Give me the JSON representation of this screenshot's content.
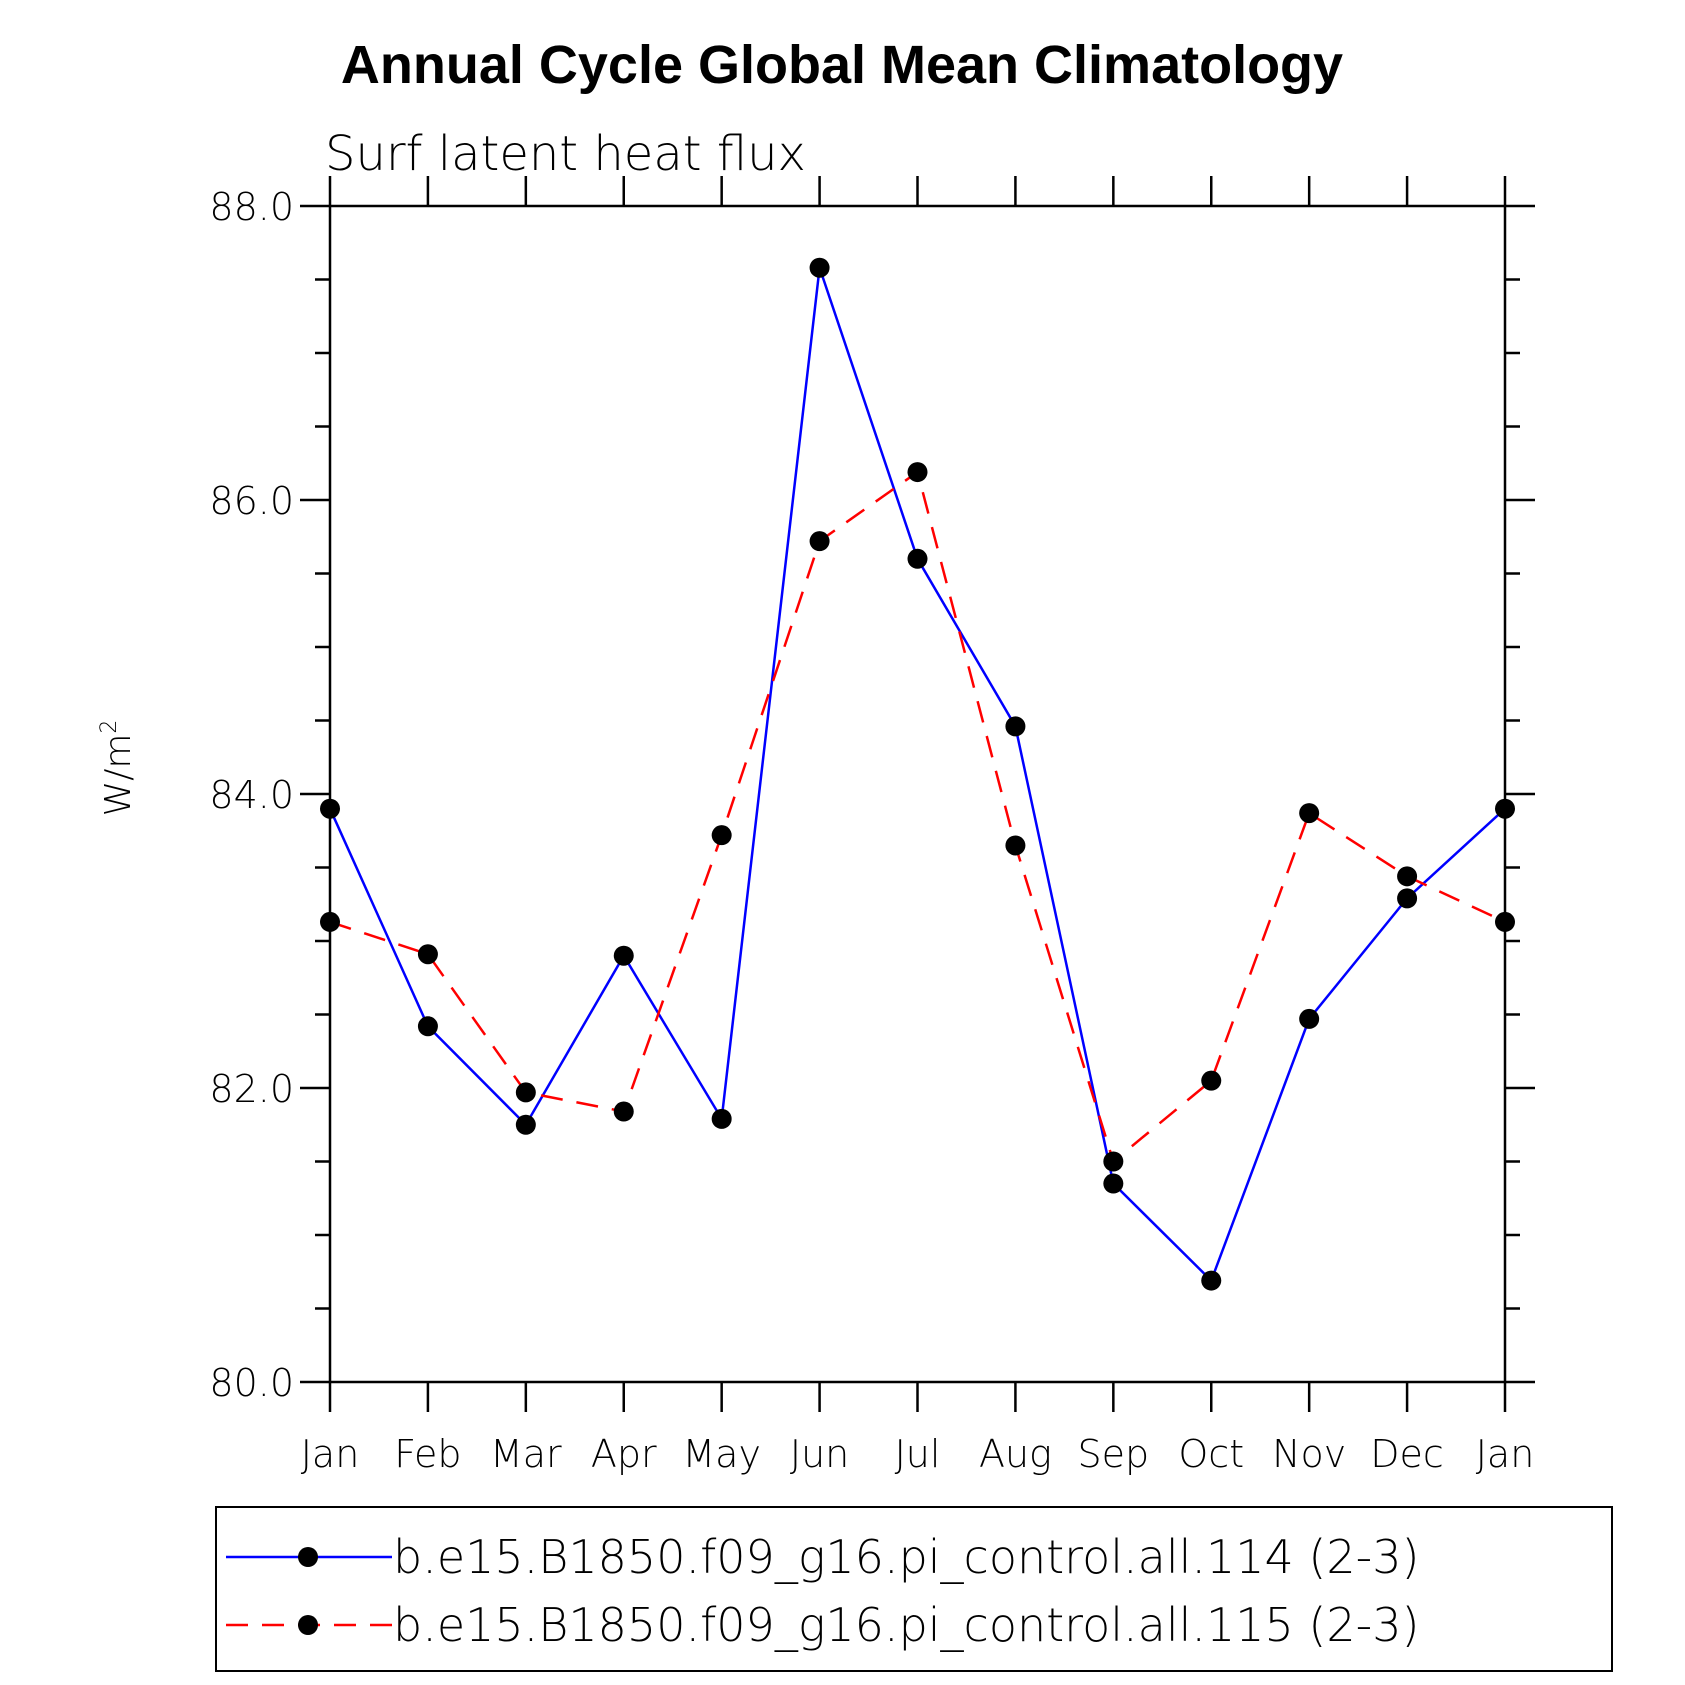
{
  "chart_data": {
    "type": "line",
    "title": "Annual Cycle Global Mean Climatology",
    "subtitle": "Surf latent heat flux",
    "ylabel": "W/m",
    "ylabel_superscript": "2",
    "xlabel": "",
    "ylim": [
      80.0,
      88.0
    ],
    "y_major_ticks": [
      "80.0",
      "82.0",
      "84.0",
      "86.0",
      "88.0"
    ],
    "y_minor_step": 0.5,
    "categories": [
      "Jan",
      "Feb",
      "Mar",
      "Apr",
      "May",
      "Jun",
      "Jul",
      "Aug",
      "Sep",
      "Oct",
      "Nov",
      "Dec",
      "Jan"
    ],
    "series": [
      {
        "name": "b.e15.B1850.f09_g16.pi_control.all.114 (2-3)",
        "color": "#0000ff",
        "dash": "solid",
        "values": [
          83.9,
          82.42,
          81.75,
          82.9,
          81.79,
          87.58,
          85.6,
          84.46,
          81.35,
          80.69,
          82.47,
          83.29,
          83.9
        ]
      },
      {
        "name": "b.e15.B1850.f09_g16.pi_control.all.115 (2-3)",
        "color": "#ff0000",
        "dash": "dashed",
        "values": [
          83.13,
          82.91,
          81.97,
          81.84,
          83.72,
          85.72,
          86.19,
          83.65,
          81.5,
          82.05,
          83.87,
          83.44,
          83.13
        ]
      }
    ]
  }
}
